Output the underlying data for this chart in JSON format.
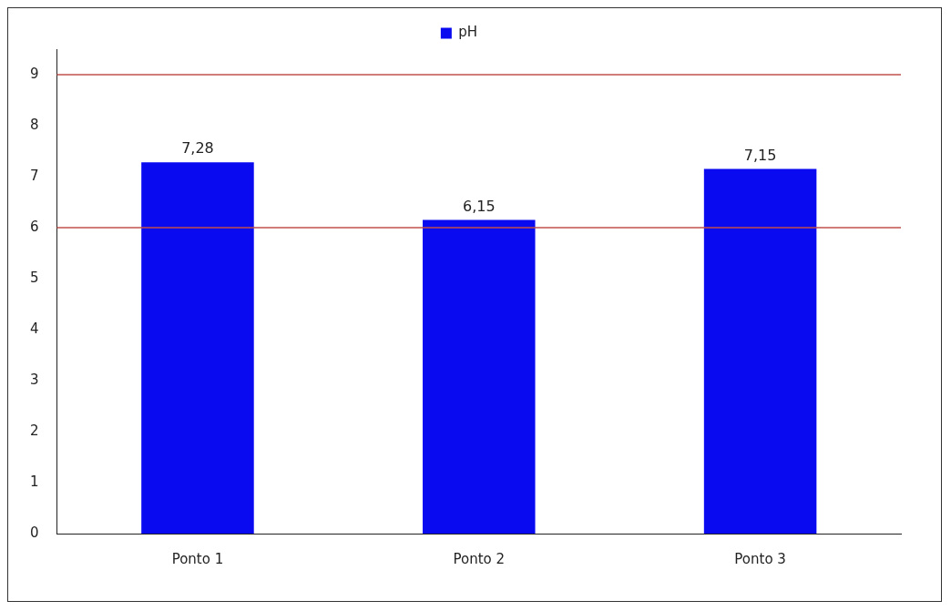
{
  "chart_data": {
    "type": "bar",
    "categories": [
      "Ponto 1",
      "Ponto 2",
      "Ponto 3"
    ],
    "series": [
      {
        "name": "pH",
        "color": "#0a0af0",
        "values": [
          7.28,
          6.15,
          7.15
        ]
      }
    ],
    "value_labels": [
      "7,28",
      "6,15",
      "7,15"
    ],
    "ylim": [
      0,
      9.5
    ],
    "yticks": [
      0,
      1,
      2,
      3,
      4,
      5,
      6,
      7,
      8,
      9
    ],
    "ref_lines": [
      {
        "axis": "y",
        "value": 6,
        "color": "#c0504d"
      },
      {
        "axis": "y",
        "value": 9,
        "color": "#c0504d"
      }
    ],
    "grid": false,
    "legend": "top"
  }
}
